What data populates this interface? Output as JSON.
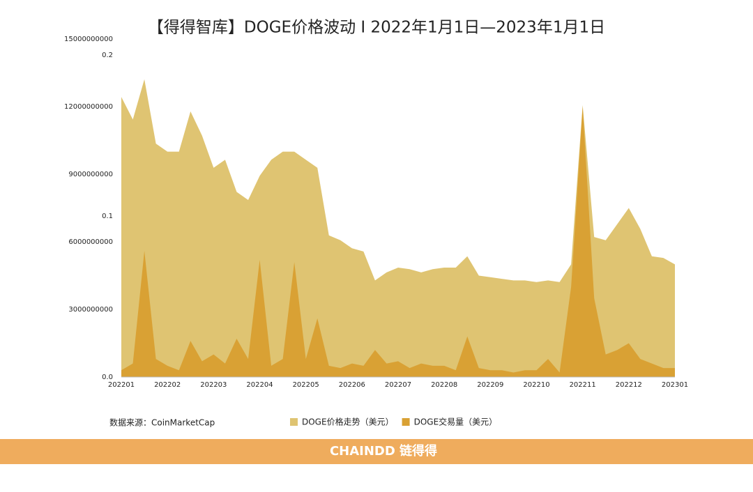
{
  "chart_data": {
    "type": "area",
    "title": "【得得智库】DOGE价格波动 I 2022年1月1日—2023年1月1日",
    "source": "数据来源：CoinMarketCap",
    "brand": "CHAINDD 链得得",
    "x": [
      0,
      0.25,
      0.5,
      0.75,
      1,
      1.25,
      1.5,
      1.75,
      2,
      2.25,
      2.5,
      2.75,
      3,
      3.25,
      3.5,
      3.75,
      4,
      4.25,
      4.5,
      4.75,
      5,
      5.25,
      5.5,
      5.75,
      6,
      6.25,
      6.5,
      6.75,
      7,
      7.25,
      7.5,
      7.75,
      8,
      8.25,
      8.5,
      8.75,
      9,
      9.25,
      9.5,
      9.75,
      10,
      10.25,
      10.5,
      10.75,
      11,
      11.25,
      11.5,
      11.75,
      12
    ],
    "xlim": [
      0,
      12
    ],
    "xticks": [
      {
        "value": 0,
        "label": "202201"
      },
      {
        "value": 1,
        "label": "202202"
      },
      {
        "value": 2,
        "label": "202203"
      },
      {
        "value": 3,
        "label": "202204"
      },
      {
        "value": 4,
        "label": "202205"
      },
      {
        "value": 5,
        "label": "202206"
      },
      {
        "value": 6,
        "label": "202207"
      },
      {
        "value": 7,
        "label": "202208"
      },
      {
        "value": 8,
        "label": "202209"
      },
      {
        "value": 9,
        "label": "202210"
      },
      {
        "value": 10,
        "label": "202211"
      },
      {
        "value": 11,
        "label": "202212"
      },
      {
        "value": 12,
        "label": "202301"
      }
    ],
    "ylim": [
      0,
      15000000000
    ],
    "yticks": [
      3000000000,
      6000000000,
      9000000000,
      12000000000,
      15000000000
    ],
    "y2lim": [
      0,
      0.21
    ],
    "y2ticks": [
      {
        "value": 0,
        "label": "0.0"
      },
      0.1,
      0.2
    ],
    "series": [
      {
        "name": "DOGE价格走势（美元）",
        "color": "#dfc472",
        "axis": "y2",
        "values": [
          0.174,
          0.16,
          0.185,
          0.145,
          0.14,
          0.14,
          0.165,
          0.15,
          0.13,
          0.135,
          0.115,
          0.11,
          0.125,
          0.135,
          0.14,
          0.14,
          0.135,
          0.13,
          0.088,
          0.085,
          0.08,
          0.078,
          0.06,
          0.065,
          0.068,
          0.067,
          0.065,
          0.067,
          0.068,
          0.068,
          0.075,
          0.063,
          0.062,
          0.061,
          0.06,
          0.06,
          0.059,
          0.06,
          0.059,
          0.07,
          0.169,
          0.087,
          0.085,
          0.095,
          0.105,
          0.092,
          0.075,
          0.074,
          0.07
        ]
      },
      {
        "name": "DOGE交易量（美元）",
        "color": "#d9a134",
        "values": [
          300000000,
          600000000,
          5600000000,
          800000000,
          500000000,
          300000000,
          1600000000,
          700000000,
          1000000000,
          600000000,
          1700000000,
          800000000,
          5200000000,
          500000000,
          800000000,
          5100000000,
          800000000,
          2600000000,
          500000000,
          400000000,
          600000000,
          500000000,
          1200000000,
          600000000,
          700000000,
          400000000,
          600000000,
          500000000,
          500000000,
          300000000,
          1800000000,
          400000000,
          300000000,
          300000000,
          200000000,
          300000000,
          300000000,
          800000000,
          200000000,
          4000000000,
          12000000000,
          3500000000,
          1000000000,
          1200000000,
          1500000000,
          800000000,
          600000000,
          400000000,
          400000000
        ]
      }
    ]
  }
}
